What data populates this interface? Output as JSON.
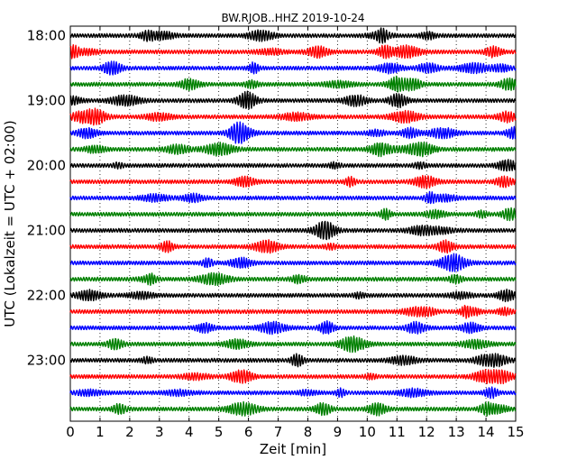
{
  "chart_data": {
    "type": "line",
    "title": "BW.RJOB..HHZ 2019-10-24",
    "xlabel": "Zeit  [min]",
    "ylabel": "UTC (Lokalzeit = UTC + 02:00)",
    "x_ticks": [
      "0",
      "1",
      "2",
      "3",
      "4",
      "5",
      "6",
      "7",
      "8",
      "9",
      "10",
      "11",
      "12",
      "13",
      "14",
      "15"
    ],
    "xlim": [
      0,
      15
    ],
    "y_tick_labels": [
      "18:00",
      "19:00",
      "20:00",
      "21:00",
      "22:00",
      "23:00"
    ],
    "grid": "vertical dotted",
    "trace_colors": [
      "#000000",
      "#ff0000",
      "#0000ff",
      "#008000"
    ],
    "traces": [
      {
        "start": "17:45",
        "color": "#000000"
      },
      {
        "start": "18:00",
        "color": "#ff0000"
      },
      {
        "start": "18:15",
        "color": "#0000ff"
      },
      {
        "start": "18:30",
        "color": "#008000"
      },
      {
        "start": "18:45",
        "color": "#000000"
      },
      {
        "start": "19:00",
        "color": "#ff0000"
      },
      {
        "start": "19:15",
        "color": "#0000ff"
      },
      {
        "start": "19:30",
        "color": "#008000"
      },
      {
        "start": "19:45",
        "color": "#000000"
      },
      {
        "start": "20:00",
        "color": "#ff0000"
      },
      {
        "start": "20:15",
        "color": "#0000ff"
      },
      {
        "start": "20:30",
        "color": "#008000"
      },
      {
        "start": "20:45",
        "color": "#000000"
      },
      {
        "start": "21:00",
        "color": "#ff0000"
      },
      {
        "start": "21:15",
        "color": "#0000ff"
      },
      {
        "start": "21:30",
        "color": "#008000"
      },
      {
        "start": "21:45",
        "color": "#000000"
      },
      {
        "start": "22:00",
        "color": "#ff0000"
      },
      {
        "start": "22:15",
        "color": "#0000ff"
      },
      {
        "start": "22:30",
        "color": "#008000"
      },
      {
        "start": "22:45",
        "color": "#000000"
      },
      {
        "start": "23:00",
        "color": "#ff0000"
      },
      {
        "start": "23:15",
        "color": "#0000ff"
      },
      {
        "start": "23:30",
        "color": "#008000"
      }
    ]
  }
}
